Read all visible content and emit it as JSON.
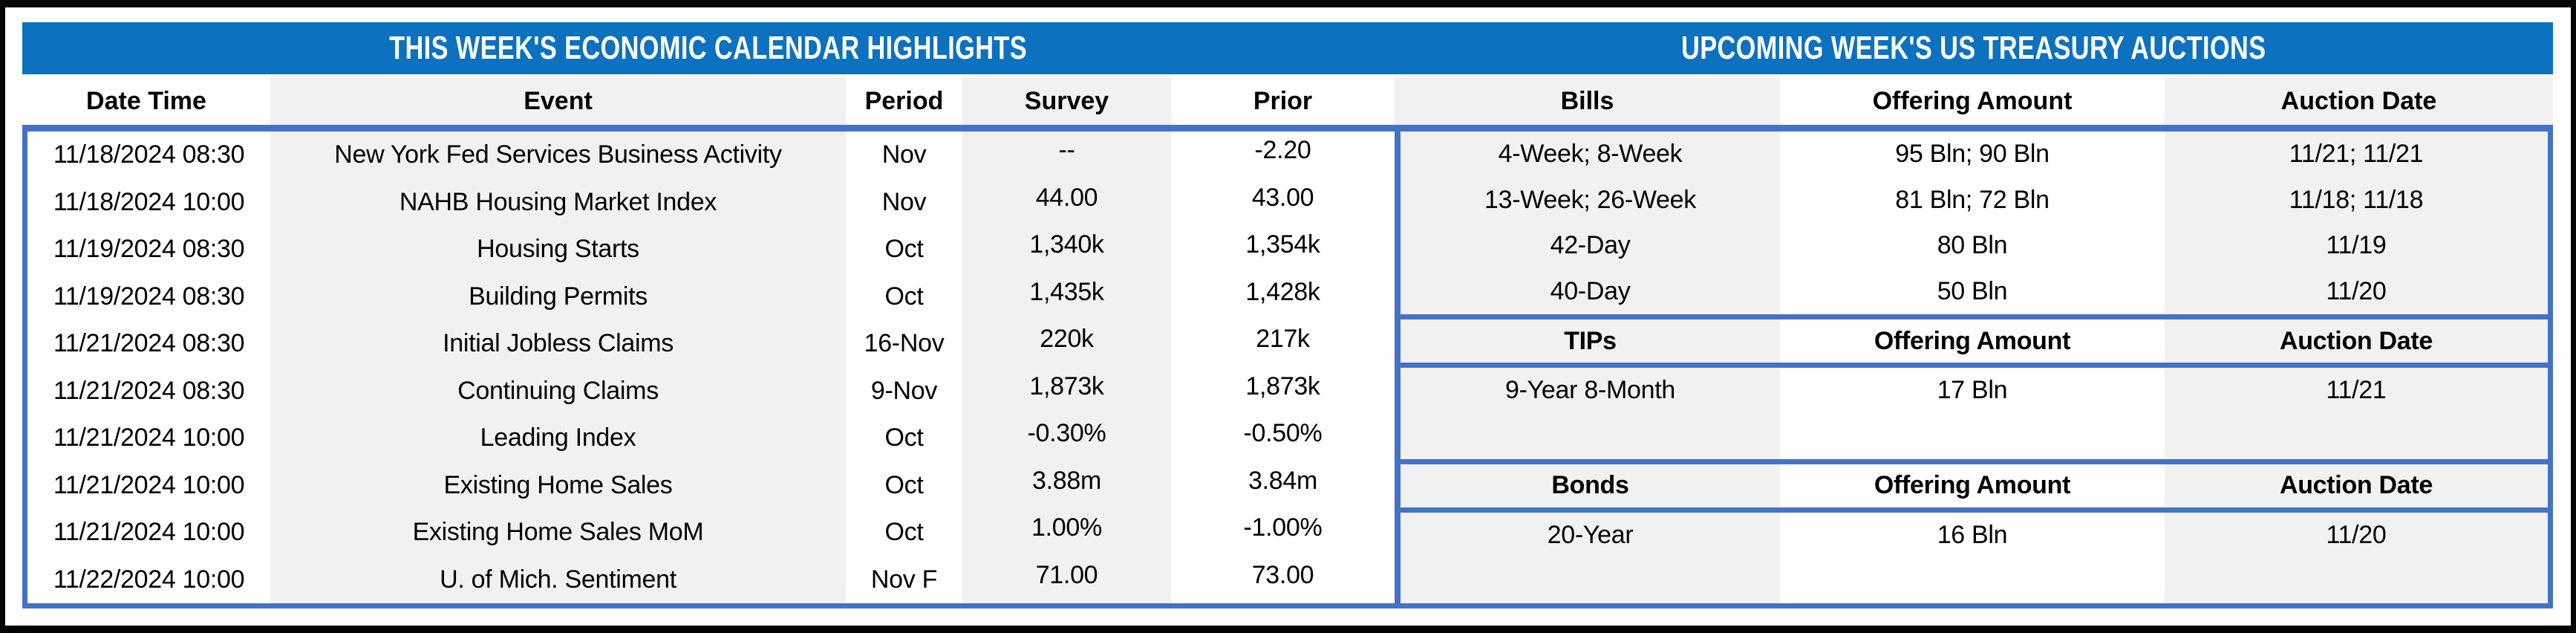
{
  "economic_calendar": {
    "title": "THIS WEEK'S ECONOMIC CALENDAR HIGHLIGHTS",
    "columns": [
      "Date Time",
      "Event",
      "Period",
      "Survey",
      "Prior"
    ],
    "rows": [
      [
        "11/18/2024 08:30",
        "New York Fed Services Business Activity",
        "Nov",
        "--",
        "-2.20"
      ],
      [
        "11/18/2024 10:00",
        "NAHB Housing Market Index",
        "Nov",
        "44.00",
        "43.00"
      ],
      [
        "11/19/2024 08:30",
        "Housing Starts",
        "Oct",
        "1,340k",
        "1,354k"
      ],
      [
        "11/19/2024 08:30",
        "Building Permits",
        "Oct",
        "1,435k",
        "1,428k"
      ],
      [
        "11/21/2024 08:30",
        "Initial Jobless Claims",
        "16-Nov",
        "220k",
        "217k"
      ],
      [
        "11/21/2024 08:30",
        "Continuing Claims",
        "9-Nov",
        "1,873k",
        "1,873k"
      ],
      [
        "11/21/2024 10:00",
        "Leading Index",
        "Oct",
        "-0.30%",
        "-0.50%"
      ],
      [
        "11/21/2024 10:00",
        "Existing Home Sales",
        "Oct",
        "3.88m",
        "3.84m"
      ],
      [
        "11/21/2024 10:00",
        "Existing Home Sales MoM",
        "Oct",
        "1.00%",
        "-1.00%"
      ],
      [
        "11/22/2024 10:00",
        "U. of Mich. Sentiment",
        "Nov F",
        "71.00",
        "73.00"
      ]
    ]
  },
  "treasury_auctions": {
    "title": "UPCOMING WEEK'S US TREASURY AUCTIONS",
    "bills": {
      "columns": [
        "Bills",
        "Offering Amount",
        "Auction Date"
      ],
      "rows": [
        [
          "4-Week; 8-Week",
          "95 Bln; 90 Bln",
          "11/21; 11/21"
        ],
        [
          "13-Week; 26-Week",
          "81 Bln; 72 Bln",
          "11/18; 11/18"
        ],
        [
          "42-Day",
          "80 Bln",
          "11/19"
        ],
        [
          "40-Day",
          "50 Bln",
          "11/20"
        ]
      ]
    },
    "tips": {
      "columns": [
        "TIPs",
        "Offering Amount",
        "Auction Date"
      ],
      "rows": [
        [
          "9-Year 8-Month",
          "17 Bln",
          "11/21"
        ]
      ]
    },
    "bonds": {
      "columns": [
        "Bonds",
        "Offering Amount",
        "Auction Date"
      ],
      "rows": [
        [
          "20-Year",
          "16 Bln",
          "11/20"
        ]
      ]
    }
  },
  "colors": {
    "title_band": "#0C71BE",
    "grid_line": "#4472C4",
    "column_stripe": "#F1F1F1",
    "frame": "#050505"
  }
}
